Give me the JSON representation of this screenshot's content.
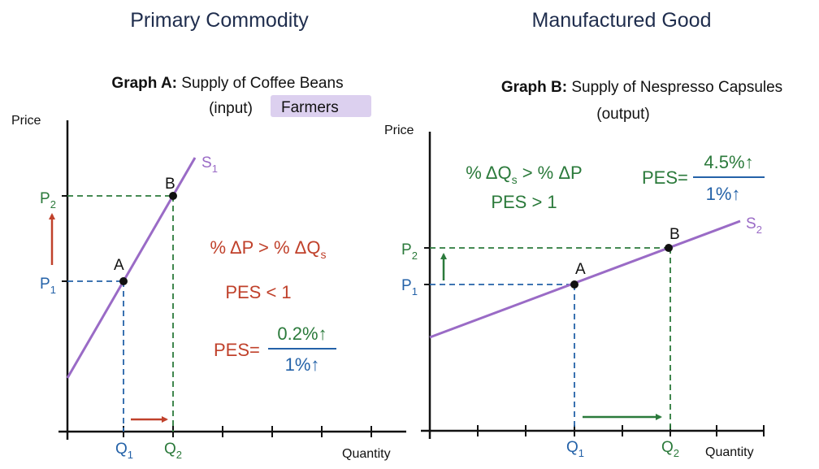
{
  "headers": {
    "left": "Primary Commodity",
    "right": "Manufactured Good"
  },
  "colors": {
    "red": "#c0412b",
    "green": "#2b7a3b",
    "blue": "#2462a8",
    "purple": "#9a6bc6",
    "tag": "#dcd0ef",
    "header": "#1f2d4d"
  },
  "graph_a": {
    "title_bold": "Graph A:",
    "title_rest": "Supply of Coffee Beans",
    "subtitle": "(input)",
    "tag": "Farmers",
    "y_label": "Price",
    "x_label": "Quantity",
    "curve": {
      "main": "S",
      "sub": "1"
    },
    "point_a": "A",
    "point_b": "B",
    "p1": {
      "main": "P",
      "sub": "1"
    },
    "p2": {
      "main": "P",
      "sub": "2"
    },
    "q1": {
      "main": "Q",
      "sub": "1"
    },
    "q2": {
      "main": "Q",
      "sub": "2"
    },
    "relation": {
      "main": "% ΔP > % ΔQ",
      "sub": "s"
    },
    "pes_statement": "PES < 1",
    "pes_prefix": "PES=",
    "pes_numerator": "0.2%↑",
    "pes_denominator": "1%↑"
  },
  "graph_b": {
    "title_bold": "Graph B:",
    "title_rest": "Supply of Nespresso Capsules",
    "subtitle": "(output)",
    "y_label": "Price",
    "x_label": "Quantity",
    "curve": {
      "main": "S",
      "sub": "2"
    },
    "point_a": "A",
    "point_b": "B",
    "p1": {
      "main": "P",
      "sub": "1"
    },
    "p2": {
      "main": "P",
      "sub": "2"
    },
    "q1": {
      "main": "Q",
      "sub": "1"
    },
    "q2": {
      "main": "Q",
      "sub": "2"
    },
    "relation": {
      "pre": "% ΔQ",
      "sub": "s",
      "post": " > % ΔP"
    },
    "pes_statement": "PES > 1",
    "pes_prefix": "PES=",
    "pes_numerator": "4.5%↑",
    "pes_denominator": "1%↑"
  }
}
